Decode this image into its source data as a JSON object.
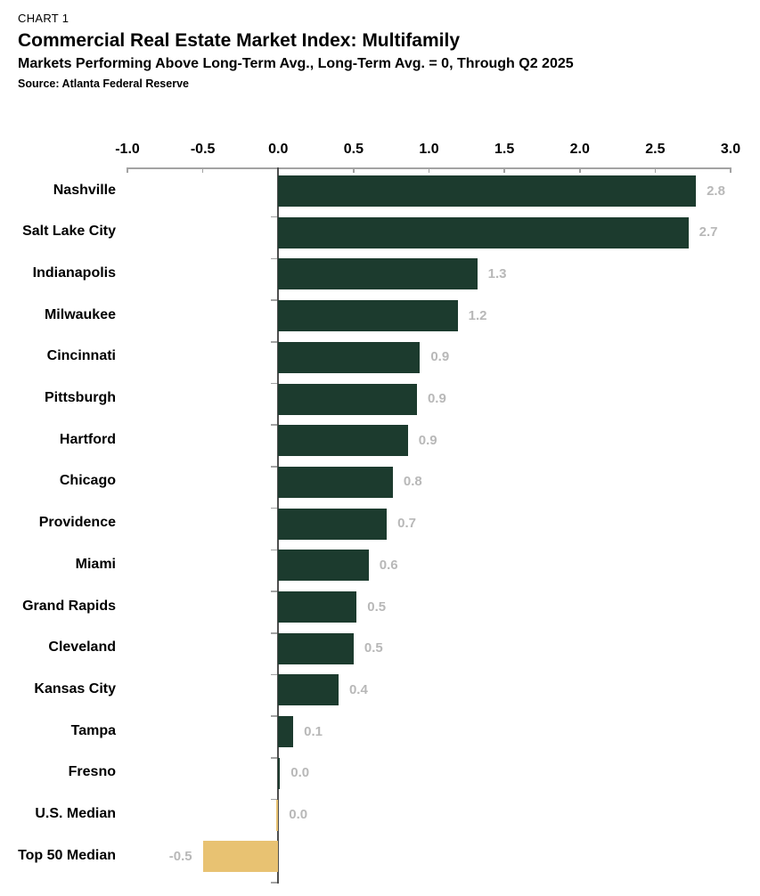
{
  "header": {
    "eyebrow": "CHART 1",
    "title": "Commercial Real Estate Market Index: Multifamily",
    "subtitle": "Markets Performing Above Long-Term Avg., Long-Term Avg. = 0, Through Q2 2025",
    "source": "Source: Atlanta Federal Reserve"
  },
  "chart_data": {
    "type": "bar",
    "orientation": "horizontal",
    "title": "Commercial Real Estate Market Index: Multifamily",
    "subtitle": "Markets Performing Above Long-Term Avg., Long-Term Avg. = 0, Through Q2 2025",
    "source": "Source: Atlanta Federal Reserve",
    "axis": {
      "min": -1.0,
      "max": 3.0,
      "step": 0.5,
      "position": "top",
      "tick_labels": [
        "-1.0",
        "-0.5",
        "0.0",
        "0.5",
        "1.0",
        "1.5",
        "2.0",
        "2.5",
        "3.0"
      ]
    },
    "rows": [
      {
        "label": "Nashville",
        "value": 2.8,
        "plot_value": 2.77
      },
      {
        "label": "Salt Lake City",
        "value": 2.7,
        "plot_value": 2.72
      },
      {
        "label": "Indianapolis",
        "value": 1.3,
        "plot_value": 1.32
      },
      {
        "label": "Milwaukee",
        "value": 1.2,
        "plot_value": 1.19
      },
      {
        "label": "Cincinnati",
        "value": 0.9,
        "plot_value": 0.94
      },
      {
        "label": "Pittsburgh",
        "value": 0.9,
        "plot_value": 0.92
      },
      {
        "label": "Hartford",
        "value": 0.9,
        "plot_value": 0.86
      },
      {
        "label": "Chicago",
        "value": 0.8,
        "plot_value": 0.76
      },
      {
        "label": "Providence",
        "value": 0.7,
        "plot_value": 0.72
      },
      {
        "label": "Miami",
        "value": 0.6,
        "plot_value": 0.6
      },
      {
        "label": "Grand Rapids",
        "value": 0.5,
        "plot_value": 0.52
      },
      {
        "label": "Cleveland",
        "value": 0.5,
        "plot_value": 0.5
      },
      {
        "label": "Kansas City",
        "value": 0.4,
        "plot_value": 0.4
      },
      {
        "label": "Tampa",
        "value": 0.1,
        "plot_value": 0.1
      },
      {
        "label": "Fresno",
        "value": 0.0,
        "plot_value": 0.012
      },
      {
        "label": "U.S. Median",
        "value": 0.0,
        "plot_value": -0.012
      },
      {
        "label": "Top 50 Median",
        "value": -0.5,
        "plot_value": -0.5
      }
    ],
    "colors": {
      "bar_positive": "#1c3b2e",
      "bar_negative": "#e8c272",
      "value_label": "#b8b8b8",
      "axis_line": "#a3a3a3",
      "zero_line": "#4e4e4e",
      "text": "#000000"
    },
    "legend": null,
    "grid": false
  }
}
